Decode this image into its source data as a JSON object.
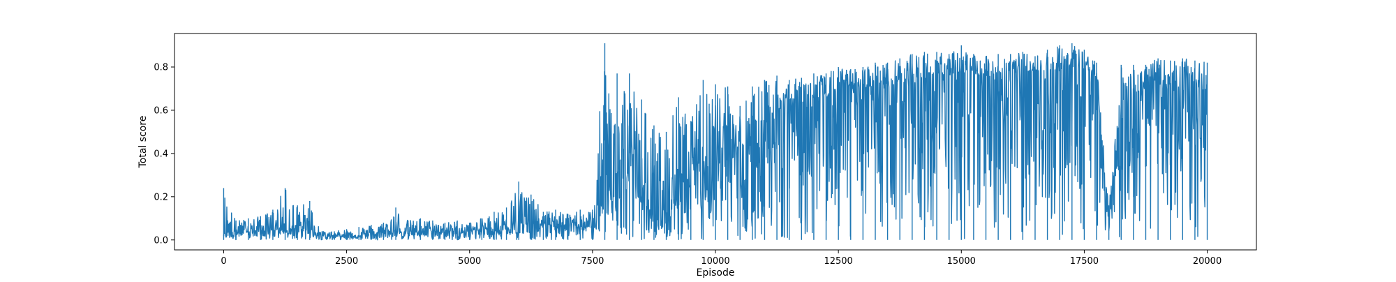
{
  "chart_data": {
    "type": "line",
    "title": "",
    "xlabel": "Episode",
    "ylabel": "Total score",
    "xlim": [
      -1000,
      21000
    ],
    "ylim": [
      -0.046,
      0.955
    ],
    "xticks": [
      0,
      2500,
      5000,
      7500,
      10000,
      12500,
      15000,
      17500,
      20000
    ],
    "xtick_labels": [
      "0",
      "2500",
      "5000",
      "7500",
      "10000",
      "12500",
      "15000",
      "17500",
      "20000"
    ],
    "yticks": [
      0.0,
      0.2,
      0.4,
      0.6,
      0.8
    ],
    "ytick_labels": [
      "0.0",
      "0.2",
      "0.4",
      "0.6",
      "0.8"
    ],
    "grid": false,
    "legend": "none",
    "series_color": "#1f77b4",
    "episode_count": 20000,
    "envelope_step": 250,
    "series": [
      {
        "envelope_x": [
          0,
          250,
          500,
          750,
          1000,
          1250,
          1500,
          1750,
          2000,
          2250,
          2500,
          2750,
          3000,
          3250,
          3500,
          3750,
          4000,
          4250,
          4500,
          4750,
          5000,
          5250,
          5500,
          5750,
          6000,
          6250,
          6500,
          6750,
          7000,
          7250,
          7500,
          7750,
          8000,
          8250,
          8500,
          8750,
          9000,
          9250,
          9500,
          9750,
          10000,
          10250,
          10500,
          10750,
          11000,
          11250,
          11500,
          11750,
          12000,
          12250,
          12500,
          12750,
          13000,
          13250,
          13500,
          13750,
          14000,
          14250,
          14500,
          14750,
          15000,
          15250,
          15500,
          15750,
          16000,
          16250,
          16500,
          16750,
          17000,
          17250,
          17500,
          17750,
          18000,
          18250,
          18500,
          18750,
          19000,
          19250,
          19500,
          19750,
          20000
        ],
        "envelope_max": [
          0.24,
          0.09,
          0.1,
          0.11,
          0.14,
          0.24,
          0.16,
          0.18,
          0.04,
          0.04,
          0.05,
          0.06,
          0.07,
          0.08,
          0.15,
          0.09,
          0.1,
          0.09,
          0.08,
          0.09,
          0.08,
          0.1,
          0.13,
          0.15,
          0.27,
          0.21,
          0.13,
          0.14,
          0.12,
          0.14,
          0.14,
          0.91,
          0.77,
          0.77,
          0.65,
          0.53,
          0.5,
          0.66,
          0.55,
          0.74,
          0.72,
          0.71,
          0.62,
          0.71,
          0.74,
          0.76,
          0.74,
          0.75,
          0.77,
          0.77,
          0.8,
          0.79,
          0.8,
          0.82,
          0.82,
          0.84,
          0.86,
          0.87,
          0.87,
          0.86,
          0.9,
          0.86,
          0.85,
          0.86,
          0.86,
          0.87,
          0.85,
          0.88,
          0.9,
          0.91,
          0.88,
          0.82,
          0.16,
          0.81,
          0.81,
          0.81,
          0.84,
          0.83,
          0.84,
          0.83,
          0.82
        ],
        "envelope_min": [
          0.0,
          0.0,
          0.0,
          0.0,
          0.0,
          0.0,
          0.0,
          0.0,
          0.0,
          0.0,
          0.0,
          0.0,
          0.0,
          0.0,
          0.0,
          0.0,
          0.0,
          0.0,
          0.0,
          0.0,
          0.0,
          0.0,
          0.0,
          0.0,
          0.0,
          0.0,
          0.0,
          0.0,
          0.0,
          0.0,
          0.0,
          0.0,
          0.0,
          0.0,
          0.0,
          0.0,
          0.0,
          0.0,
          0.0,
          0.0,
          0.0,
          0.0,
          0.0,
          0.0,
          0.0,
          0.0,
          0.0,
          0.0,
          0.0,
          0.0,
          0.0,
          0.0,
          0.0,
          0.0,
          0.0,
          0.0,
          0.0,
          0.0,
          0.0,
          0.0,
          0.0,
          0.0,
          0.0,
          0.0,
          0.0,
          0.0,
          0.0,
          0.0,
          0.0,
          0.0,
          0.0,
          0.0,
          0.0,
          0.0,
          0.0,
          0.0,
          0.0,
          0.0,
          0.0,
          0.0,
          0.0
        ],
        "typical_level": [
          0.04,
          0.04,
          0.04,
          0.04,
          0.05,
          0.05,
          0.05,
          0.05,
          0.02,
          0.02,
          0.02,
          0.02,
          0.03,
          0.03,
          0.04,
          0.04,
          0.04,
          0.04,
          0.04,
          0.04,
          0.04,
          0.05,
          0.05,
          0.06,
          0.07,
          0.07,
          0.07,
          0.07,
          0.07,
          0.07,
          0.07,
          0.2,
          0.3,
          0.35,
          0.2,
          0.08,
          0.15,
          0.25,
          0.3,
          0.4,
          0.5,
          0.45,
          0.35,
          0.3,
          0.55,
          0.6,
          0.62,
          0.63,
          0.65,
          0.66,
          0.68,
          0.7,
          0.7,
          0.72,
          0.72,
          0.74,
          0.75,
          0.75,
          0.76,
          0.76,
          0.77,
          0.76,
          0.76,
          0.77,
          0.77,
          0.78,
          0.78,
          0.78,
          0.79,
          0.8,
          0.79,
          0.75,
          0.07,
          0.65,
          0.68,
          0.7,
          0.72,
          0.72,
          0.73,
          0.73,
          0.65
        ]
      }
    ]
  }
}
